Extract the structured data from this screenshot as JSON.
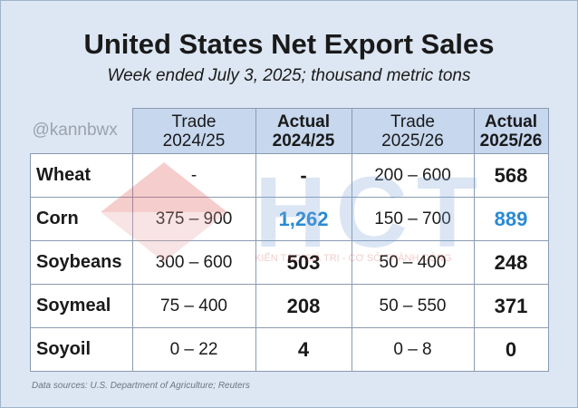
{
  "header": {
    "title": "United States Net Export Sales",
    "subtitle": "Week ended July 3, 2025; thousand metric tons"
  },
  "table": {
    "corner": "@kannbwx",
    "columns": [
      [
        "Trade",
        "2024/25"
      ],
      [
        "Actual",
        "2024/25"
      ],
      [
        "Trade",
        "2025/26"
      ],
      [
        "Actual",
        "2025/26"
      ]
    ],
    "actual_columns": [
      1,
      3
    ],
    "rows": [
      [
        "Wheat",
        "-",
        "-",
        "200 – 600",
        "568"
      ],
      [
        "Corn",
        "375 – 900",
        "1,262",
        "150 – 700",
        "889"
      ],
      [
        "Soybeans",
        "300 – 600",
        "503",
        "50 – 400",
        "248"
      ],
      [
        "Soymeal",
        "75 – 400",
        "208",
        "50 – 550",
        "371"
      ],
      [
        "Soyoil",
        "0 – 22",
        "4",
        "0 – 8",
        "0"
      ]
    ],
    "highlighted_cells": [
      [
        1,
        2
      ],
      [
        1,
        4
      ]
    ],
    "highlight_color": "#2a8ad4"
  },
  "watermark": {
    "logo": "HCT",
    "tagline": "KIẾN TẠO GIÁ TRỊ - CƠ SỞ THÀNH CÔNG"
  },
  "footer": {
    "source": "Data sources: U.S. Department of Agriculture; Reuters"
  }
}
